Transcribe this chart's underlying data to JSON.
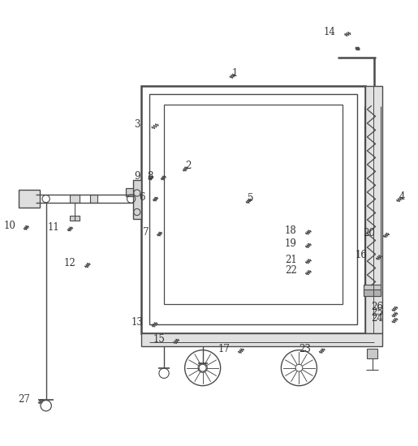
{
  "bg_color": "#ffffff",
  "line_color": "#4a4a4a",
  "label_color": "#333333",
  "fig_width": 5.15,
  "fig_height": 5.5,
  "dpi": 100
}
